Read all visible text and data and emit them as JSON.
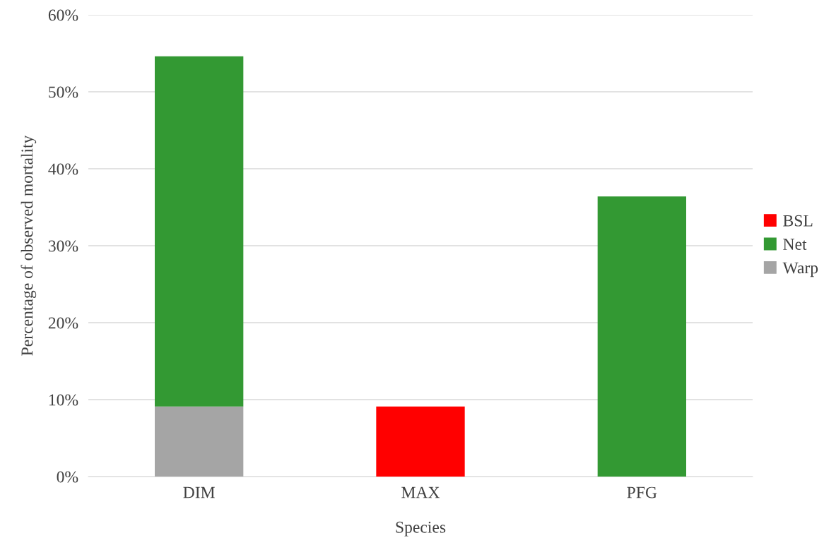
{
  "chart_data": {
    "type": "bar",
    "stacked": true,
    "xlabel": "Species",
    "ylabel": "Percentage of observed mortality",
    "categories": [
      "DIM",
      "MAX",
      "PFG"
    ],
    "series": [
      {
        "name": "Warp",
        "color": "#a5a5a5",
        "values": [
          9.1,
          0,
          0
        ]
      },
      {
        "name": "Net",
        "color": "#339933",
        "values": [
          45.5,
          0,
          36.4
        ]
      },
      {
        "name": "BSL",
        "color": "#ff0000",
        "values": [
          0,
          9.1,
          0
        ]
      }
    ],
    "ylim": [
      0,
      60
    ],
    "yticks": [
      {
        "value": 0,
        "label": "0%"
      },
      {
        "value": 10,
        "label": "10%"
      },
      {
        "value": 20,
        "label": "20%"
      },
      {
        "value": 30,
        "label": "30%"
      },
      {
        "value": 40,
        "label": "40%"
      },
      {
        "value": 50,
        "label": "50%"
      },
      {
        "value": 60,
        "label": "60%"
      }
    ],
    "grid": "y",
    "legend": "right"
  }
}
